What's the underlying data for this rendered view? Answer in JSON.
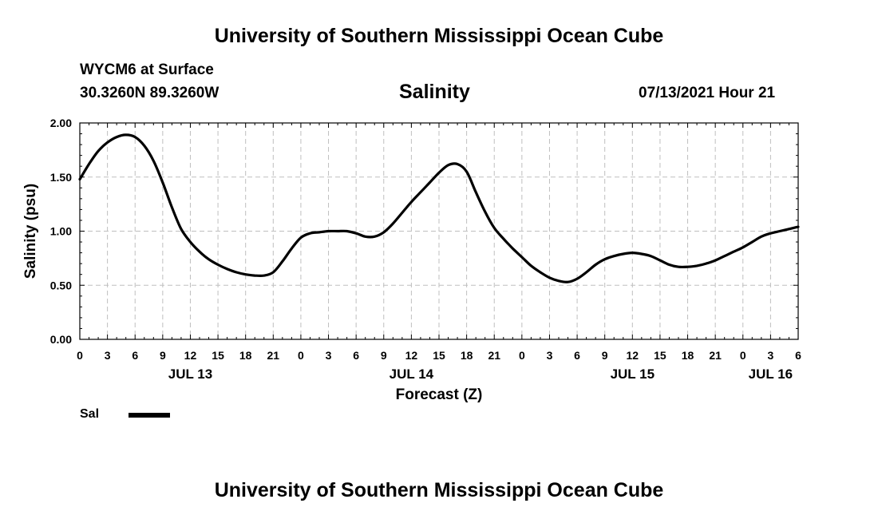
{
  "page": {
    "title_top": "University of Southern Mississippi Ocean Cube",
    "title_bottom": "University of Southern Mississippi Ocean Cube",
    "station": "WYCM6 at Surface",
    "coords": "30.3260N  89.3260W",
    "variable": "Salinity",
    "datetime": "07/13/2021 Hour 21"
  },
  "legend": {
    "label": "Sal"
  },
  "colors": {
    "line": "#000000",
    "grid": "#bfbfbf",
    "axis": "#000000"
  },
  "chart_data": {
    "type": "line",
    "title": "Salinity",
    "xlabel": "Forecast (Z)",
    "ylabel": "Salinity (psu)",
    "xlim": [
      0,
      78
    ],
    "ylim": [
      0,
      2
    ],
    "grid": true,
    "legend_position": "bottom-left",
    "x_ticks": [
      0,
      3,
      6,
      9,
      12,
      15,
      18,
      21,
      24,
      27,
      30,
      33,
      36,
      39,
      42,
      45,
      48,
      51,
      54,
      57,
      60,
      63,
      66,
      69,
      72,
      75,
      78
    ],
    "x_tick_labels": [
      "0",
      "3",
      "6",
      "9",
      "12",
      "15",
      "18",
      "21",
      "0",
      "3",
      "6",
      "9",
      "12",
      "15",
      "18",
      "21",
      "0",
      "3",
      "6",
      "9",
      "12",
      "15",
      "18",
      "21",
      "0",
      "3",
      "6"
    ],
    "y_ticks": [
      0,
      0.5,
      1.0,
      1.5,
      2.0
    ],
    "y_tick_labels": [
      "0.00",
      "0.50",
      "1.00",
      "1.50",
      "2.00"
    ],
    "date_labels": [
      {
        "x": 12,
        "label": "JUL 13"
      },
      {
        "x": 36,
        "label": "JUL 14"
      },
      {
        "x": 60,
        "label": "JUL 15"
      },
      {
        "x": 75,
        "label": "JUL 16"
      }
    ],
    "series": [
      {
        "name": "Sal",
        "x": [
          0,
          1,
          2,
          3,
          4,
          5,
          6,
          7,
          8,
          9,
          10,
          11,
          12,
          13,
          14,
          15,
          16,
          17,
          18,
          19,
          20,
          21,
          22,
          23,
          24,
          25,
          26,
          27,
          28,
          29,
          30,
          31,
          32,
          33,
          34,
          35,
          36,
          37,
          38,
          39,
          40,
          41,
          42,
          43,
          44,
          45,
          46,
          47,
          48,
          49,
          50,
          51,
          52,
          53,
          54,
          55,
          56,
          57,
          58,
          59,
          60,
          61,
          62,
          63,
          64,
          65,
          66,
          67,
          68,
          69,
          70,
          71,
          72,
          73,
          74,
          75,
          76,
          77,
          78
        ],
        "values": [
          1.48,
          1.62,
          1.74,
          1.82,
          1.87,
          1.89,
          1.87,
          1.79,
          1.65,
          1.45,
          1.22,
          1.02,
          0.9,
          0.81,
          0.74,
          0.69,
          0.65,
          0.62,
          0.6,
          0.59,
          0.59,
          0.62,
          0.72,
          0.84,
          0.94,
          0.98,
          0.99,
          1.0,
          1.0,
          1.0,
          0.98,
          0.95,
          0.95,
          0.99,
          1.07,
          1.17,
          1.27,
          1.36,
          1.45,
          1.54,
          1.61,
          1.62,
          1.55,
          1.36,
          1.18,
          1.03,
          0.93,
          0.84,
          0.76,
          0.68,
          0.62,
          0.57,
          0.54,
          0.53,
          0.56,
          0.62,
          0.69,
          0.74,
          0.77,
          0.79,
          0.8,
          0.79,
          0.77,
          0.73,
          0.69,
          0.67,
          0.67,
          0.68,
          0.7,
          0.73,
          0.77,
          0.81,
          0.85,
          0.9,
          0.95,
          0.98,
          1.0,
          1.02,
          1.04
        ]
      }
    ]
  }
}
